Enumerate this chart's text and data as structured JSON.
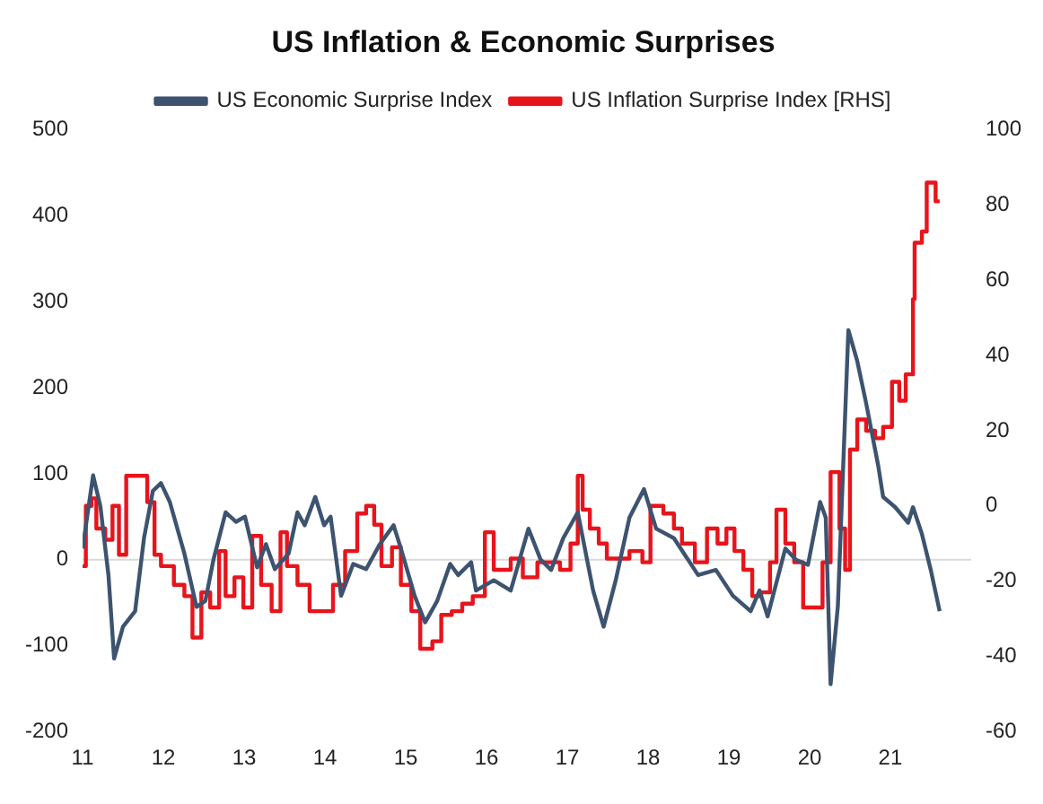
{
  "chart_data": {
    "type": "line",
    "title": "US Inflation & Economic Surprises",
    "legend": "top",
    "grid": false,
    "marker": "none",
    "line_style": "solid",
    "xlim": [
      2011,
      2022
    ],
    "xticks": [
      {
        "value": 2011,
        "label": "11"
      },
      {
        "value": 2012,
        "label": "12"
      },
      {
        "value": 2013,
        "label": "13"
      },
      {
        "value": 2014,
        "label": "14"
      },
      {
        "value": 2015,
        "label": "15"
      },
      {
        "value": 2016,
        "label": "16"
      },
      {
        "value": 2017,
        "label": "17"
      },
      {
        "value": 2018,
        "label": "18"
      },
      {
        "value": 2019,
        "label": "19"
      },
      {
        "value": 2020,
        "label": "20"
      },
      {
        "value": 2021,
        "label": "21"
      }
    ],
    "ylim": [
      -200,
      500
    ],
    "yticks": [
      -200,
      -100,
      0,
      100,
      200,
      300,
      400,
      500
    ],
    "y2lim": [
      -60,
      100
    ],
    "y2ticks": [
      -60,
      -40,
      -20,
      0,
      20,
      40,
      60,
      80,
      100
    ],
    "ref_lines": [
      {
        "axis": "y",
        "value": 0,
        "color": "#d9d9d9"
      }
    ],
    "series": [
      {
        "name": "US Economic Surprise Index",
        "type": "line",
        "color": "#3d5370",
        "x": [
          2011.0,
          2011.13,
          2011.22,
          2011.32,
          2011.39,
          2011.5,
          2011.65,
          2011.76,
          2011.87,
          2011.97,
          2012.08,
          2012.26,
          2012.41,
          2012.52,
          2012.62,
          2012.77,
          2012.9,
          2013.01,
          2013.16,
          2013.27,
          2013.38,
          2013.55,
          2013.66,
          2013.75,
          2013.88,
          2013.99,
          2014.07,
          2014.2,
          2014.35,
          2014.51,
          2014.68,
          2014.85,
          2014.94,
          2015.11,
          2015.24,
          2015.39,
          2015.55,
          2015.65,
          2015.81,
          2015.87,
          2016.09,
          2016.3,
          2016.52,
          2016.67,
          2016.8,
          2016.95,
          2017.13,
          2017.32,
          2017.45,
          2017.6,
          2017.77,
          2017.95,
          2018.1,
          2018.32,
          2018.62,
          2018.84,
          2019.05,
          2019.27,
          2019.38,
          2019.48,
          2019.7,
          2019.83,
          2019.98,
          2020.13,
          2020.2,
          2020.26,
          2020.35,
          2020.48,
          2020.59,
          2020.7,
          2020.85,
          2020.91,
          2021.06,
          2021.22,
          2021.28,
          2021.39,
          2021.5,
          2021.61
        ],
        "values": [
          13,
          98,
          62,
          -18,
          -115,
          -78,
          -60,
          25,
          80,
          89,
          67,
          7,
          -55,
          -48,
          0,
          55,
          44,
          50,
          -9,
          18,
          -11,
          7,
          55,
          40,
          73,
          40,
          50,
          -42,
          -5,
          -11,
          18,
          40,
          13,
          -42,
          -73,
          -48,
          -5,
          -18,
          -3,
          -36,
          -24,
          -36,
          36,
          0,
          -12,
          25,
          55,
          -36,
          -78,
          -24,
          49,
          82,
          36,
          25,
          -18,
          -12,
          -42,
          -60,
          -36,
          -66,
          13,
          0,
          -6,
          67,
          49,
          -145,
          -54,
          267,
          231,
          182,
          109,
          73,
          61,
          43,
          61,
          30,
          -12,
          -60
        ]
      },
      {
        "name": "US Inflation Surprise Index [RHS]",
        "type": "step",
        "axis": "y2",
        "color": "#e8141b",
        "x": [
          2011.0,
          2011.04,
          2011.11,
          2011.17,
          2011.28,
          2011.37,
          2011.45,
          2011.54,
          2011.69,
          2011.8,
          2011.89,
          2011.97,
          2012.13,
          2012.26,
          2012.36,
          2012.47,
          2012.58,
          2012.69,
          2012.77,
          2012.88,
          2012.99,
          2013.1,
          2013.21,
          2013.34,
          2013.45,
          2013.53,
          2013.66,
          2013.81,
          2013.97,
          2014.1,
          2014.25,
          2014.4,
          2014.51,
          2014.61,
          2014.7,
          2014.83,
          2014.94,
          2015.07,
          2015.18,
          2015.33,
          2015.44,
          2015.57,
          2015.7,
          2015.83,
          2015.98,
          2016.09,
          2016.3,
          2016.45,
          2016.63,
          2016.91,
          2017.04,
          2017.13,
          2017.19,
          2017.28,
          2017.39,
          2017.49,
          2017.77,
          2017.93,
          2018.03,
          2018.19,
          2018.32,
          2018.42,
          2018.58,
          2018.73,
          2018.86,
          2018.97,
          2019.07,
          2019.18,
          2019.29,
          2019.4,
          2019.51,
          2019.59,
          2019.7,
          2019.81,
          2019.92,
          2020.16,
          2020.26,
          2020.37,
          2020.44,
          2020.5,
          2020.59,
          2020.7,
          2020.81,
          2020.91,
          2021.02,
          2021.11,
          2021.19,
          2021.28,
          2021.3,
          2021.39,
          2021.45,
          2021.56,
          2021.61
        ],
        "values": [
          -16,
          0,
          2,
          -6,
          -9,
          0,
          -13,
          8,
          8,
          1,
          -13,
          -16,
          -21,
          -24,
          -35,
          -23,
          -27,
          -12,
          -24,
          -19,
          -27,
          -8,
          -21,
          -28,
          -7,
          -16,
          -21,
          -28,
          -28,
          -21,
          -12,
          -2,
          0,
          -5,
          -16,
          -11,
          -21,
          -28,
          -38,
          -36,
          -29,
          -28,
          -26,
          -24,
          -7,
          -17,
          -14,
          -19,
          -15,
          -17,
          -10,
          8,
          -1,
          -6,
          -10,
          -14,
          -12,
          -15,
          0,
          -2,
          -6,
          -10,
          -15,
          -6,
          -10,
          -6,
          -12,
          -17,
          -24,
          -23,
          -15,
          -1,
          -10,
          -15,
          -27,
          -15,
          9,
          -6,
          -17,
          15,
          23,
          20,
          18,
          21,
          33,
          28,
          35,
          55,
          70,
          73,
          86,
          81,
          81
        ]
      }
    ]
  }
}
